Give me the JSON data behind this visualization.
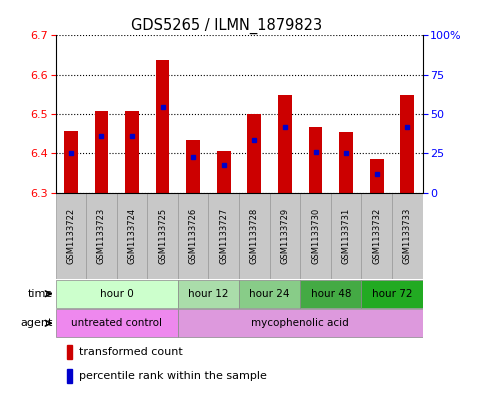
{
  "title": "GDS5265 / ILMN_1879823",
  "samples": [
    "GSM1133722",
    "GSM1133723",
    "GSM1133724",
    "GSM1133725",
    "GSM1133726",
    "GSM1133727",
    "GSM1133728",
    "GSM1133729",
    "GSM1133730",
    "GSM1133731",
    "GSM1133732",
    "GSM1133733"
  ],
  "bar_tops": [
    6.457,
    6.508,
    6.508,
    6.637,
    6.435,
    6.407,
    6.5,
    6.549,
    6.468,
    6.455,
    6.386,
    6.549
  ],
  "bar_bottom": 6.3,
  "percentile_values": [
    6.4,
    6.444,
    6.444,
    6.519,
    6.39,
    6.371,
    6.434,
    6.468,
    6.402,
    6.401,
    6.348,
    6.468
  ],
  "ylim": [
    6.3,
    6.7
  ],
  "yticks_left": [
    6.3,
    6.4,
    6.5,
    6.6,
    6.7
  ],
  "yticks_right": [
    0,
    25,
    50,
    75,
    100
  ],
  "ytick_labels_right": [
    "0",
    "25",
    "50",
    "75",
    "100%"
  ],
  "bar_color": "#cc0000",
  "percentile_color": "#0000cc",
  "time_colors": [
    "#ccffcc",
    "#aaddaa",
    "#88cc88",
    "#44aa44",
    "#22aa22"
  ],
  "time_labels": [
    "hour 0",
    "hour 12",
    "hour 24",
    "hour 48",
    "hour 72"
  ],
  "time_starts": [
    0,
    4,
    6,
    8,
    10
  ],
  "time_ends": [
    4,
    6,
    8,
    10,
    12
  ],
  "agent_colors": [
    "#ee88ee",
    "#dd99dd"
  ],
  "agent_labels": [
    "untreated control",
    "mycophenolic acid"
  ],
  "agent_starts": [
    0,
    4
  ],
  "agent_ends": [
    4,
    12
  ],
  "bg_color": "#ffffff",
  "sample_bg_color": "#c8c8c8",
  "legend_red_label": "transformed count",
  "legend_blue_label": "percentile rank within the sample"
}
